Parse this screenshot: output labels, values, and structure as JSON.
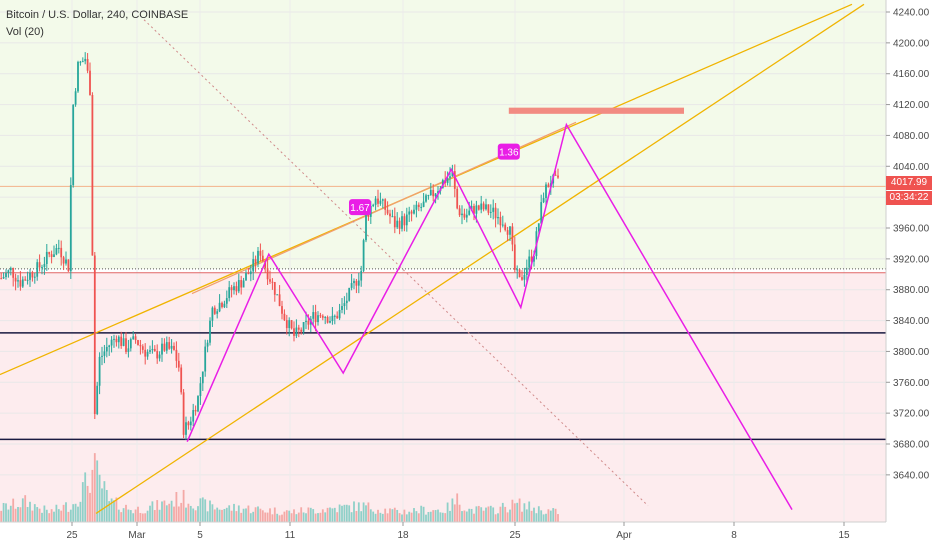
{
  "header": {
    "title": "Bitcoin / U.S. Dollar, 240, COINBASE",
    "indicator": "Vol (20)"
  },
  "price_tags": {
    "last": "4017.99",
    "countdown": "03:34:22"
  },
  "colors": {
    "up": "#26a69a",
    "down": "#ef5350",
    "pattern": "#e91ee6",
    "trendline": "#f0b400",
    "support": "#1a1a40",
    "target_zone": "#f28b82",
    "upper_band": "#f3faea",
    "lower_band": "#fdecee"
  },
  "chart_data": {
    "type": "candlestick",
    "title": "Bitcoin / U.S. Dollar, 240, COINBASE",
    "x_tick_labels": [
      "25",
      "Mar",
      "5",
      "11",
      "18",
      "25",
      "Apr",
      "8",
      "15"
    ],
    "y_tick_labels": [
      "4240.00",
      "4200.00",
      "4160.00",
      "4120.00",
      "4080.00",
      "4040.00",
      "4000.00",
      "3960.00",
      "3920.00",
      "3880.00",
      "3840.00",
      "3800.00",
      "3760.00",
      "3720.00",
      "3680.00",
      "3640.00"
    ],
    "ylim": [
      3605,
      4250
    ],
    "last_price": 4017.99,
    "price_path": [
      [
        0,
        3895
      ],
      [
        4,
        3905
      ],
      [
        8,
        3890
      ],
      [
        12,
        3900
      ],
      [
        16,
        3910
      ],
      [
        20,
        3925
      ],
      [
        24,
        3935
      ],
      [
        28,
        3910
      ],
      [
        30,
        4120
      ],
      [
        32,
        4170
      ],
      [
        35,
        4180
      ],
      [
        37,
        4140
      ],
      [
        39,
        3720
      ],
      [
        41,
        3790
      ],
      [
        44,
        3805
      ],
      [
        48,
        3820
      ],
      [
        52,
        3805
      ],
      [
        56,
        3815
      ],
      [
        60,
        3800
      ],
      [
        64,
        3795
      ],
      [
        68,
        3805
      ],
      [
        72,
        3800
      ],
      [
        74,
        3780
      ],
      [
        76,
        3700
      ],
      [
        78,
        3705
      ],
      [
        82,
        3740
      ],
      [
        86,
        3820
      ],
      [
        88,
        3855
      ],
      [
        92,
        3865
      ],
      [
        96,
        3880
      ],
      [
        100,
        3890
      ],
      [
        104,
        3905
      ],
      [
        108,
        3930
      ],
      [
        110,
        3910
      ],
      [
        114,
        3880
      ],
      [
        118,
        3845
      ],
      [
        122,
        3820
      ],
      [
        126,
        3830
      ],
      [
        130,
        3845
      ],
      [
        134,
        3850
      ],
      [
        138,
        3840
      ],
      [
        142,
        3855
      ],
      [
        146,
        3880
      ],
      [
        150,
        3905
      ],
      [
        152,
        3975
      ],
      [
        156,
        4000
      ],
      [
        160,
        3985
      ],
      [
        164,
        3965
      ],
      [
        168,
        3970
      ],
      [
        172,
        3980
      ],
      [
        176,
        3990
      ],
      [
        180,
        4005
      ],
      [
        184,
        4020
      ],
      [
        188,
        4030
      ],
      [
        190,
        3985
      ],
      [
        193,
        3975
      ],
      [
        197,
        3985
      ],
      [
        201,
        3985
      ],
      [
        205,
        3980
      ],
      [
        209,
        3970
      ],
      [
        212,
        3955
      ],
      [
        214,
        3905
      ],
      [
        216,
        3890
      ],
      [
        218,
        3905
      ],
      [
        222,
        3930
      ],
      [
        226,
        4005
      ],
      [
        229,
        4022
      ],
      [
        232,
        4018
      ]
    ],
    "volume_path": [
      [
        0,
        0.35
      ],
      [
        10,
        0.5
      ],
      [
        20,
        0.25
      ],
      [
        30,
        0.45
      ],
      [
        39,
        1.3
      ],
      [
        45,
        0.5
      ],
      [
        55,
        0.3
      ],
      [
        65,
        0.4
      ],
      [
        75,
        0.6
      ],
      [
        80,
        0.5
      ],
      [
        90,
        0.35
      ],
      [
        100,
        0.35
      ],
      [
        110,
        0.3
      ],
      [
        120,
        0.25
      ],
      [
        130,
        0.3
      ],
      [
        140,
        0.35
      ],
      [
        150,
        0.4
      ],
      [
        155,
        0.35
      ],
      [
        165,
        0.25
      ],
      [
        175,
        0.3
      ],
      [
        185,
        0.3
      ],
      [
        190,
        0.55
      ],
      [
        195,
        0.3
      ],
      [
        205,
        0.3
      ],
      [
        215,
        0.45
      ],
      [
        225,
        0.3
      ],
      [
        232,
        0.25
      ]
    ],
    "annotations": {
      "ratio_labels": [
        {
          "text": "1.67",
          "price": 3987,
          "bar": 150
        },
        {
          "text": "1.36",
          "price": 4059,
          "bar": 212
        }
      ],
      "pattern": [
        {
          "bar": 78,
          "price": 3683
        },
        {
          "bar": 112,
          "price": 3926
        },
        {
          "bar": 143,
          "price": 3772
        },
        {
          "bar": 188,
          "price": 4036
        },
        {
          "bar": 217,
          "price": 3857
        },
        {
          "bar": 236,
          "price": 4094
        },
        {
          "bar": 330,
          "price": 3595
        }
      ],
      "trend_lines": [
        {
          "from": {
            "bar": 0,
            "price": 3770
          },
          "to": {
            "bar": 355,
            "price": 4250
          }
        },
        {
          "from": {
            "bar": 40,
            "price": 3590
          },
          "to": {
            "bar": 360,
            "price": 4250
          }
        },
        {
          "from": {
            "bar": 80,
            "price": 3875
          },
          "to": {
            "bar": 240,
            "price": 4097
          }
        }
      ],
      "diagonal_dotted": {
        "from": {
          "bar": 60,
          "price": 4230
        },
        "to": {
          "bar": 270,
          "price": 3600
        }
      },
      "horizontal_lines": [
        3824,
        3686,
        3907,
        3902,
        4014
      ],
      "target_zone": {
        "from_bar": 212,
        "to_bar": 285,
        "price_low": 4108,
        "price_high": 4116
      }
    }
  }
}
